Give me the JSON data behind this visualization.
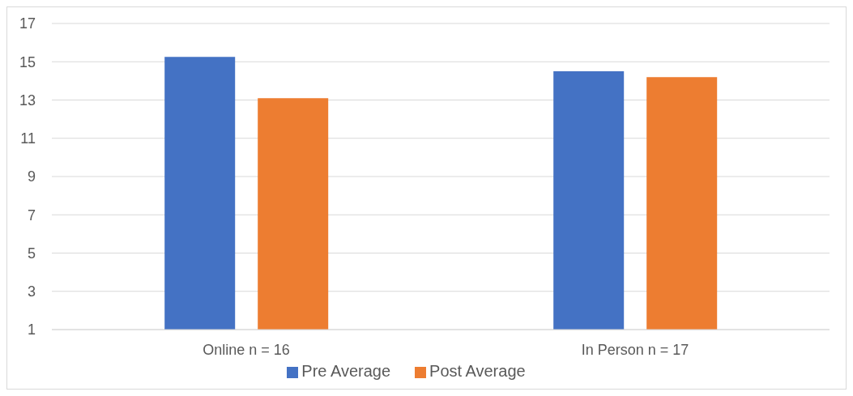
{
  "chart_data": {
    "type": "bar",
    "categories": [
      "Online n = 16",
      "In Person n = 17"
    ],
    "series": [
      {
        "name": "Pre Average",
        "color": "#4472c4",
        "values": [
          15.25,
          14.5
        ]
      },
      {
        "name": "Post Average",
        "color": "#ed7d31",
        "values": [
          13.1,
          14.2
        ]
      }
    ],
    "ylim": [
      1,
      17
    ],
    "yticks": [
      1,
      3,
      5,
      7,
      9,
      11,
      13,
      15,
      17
    ],
    "grid": "y",
    "legend": "bottom"
  }
}
